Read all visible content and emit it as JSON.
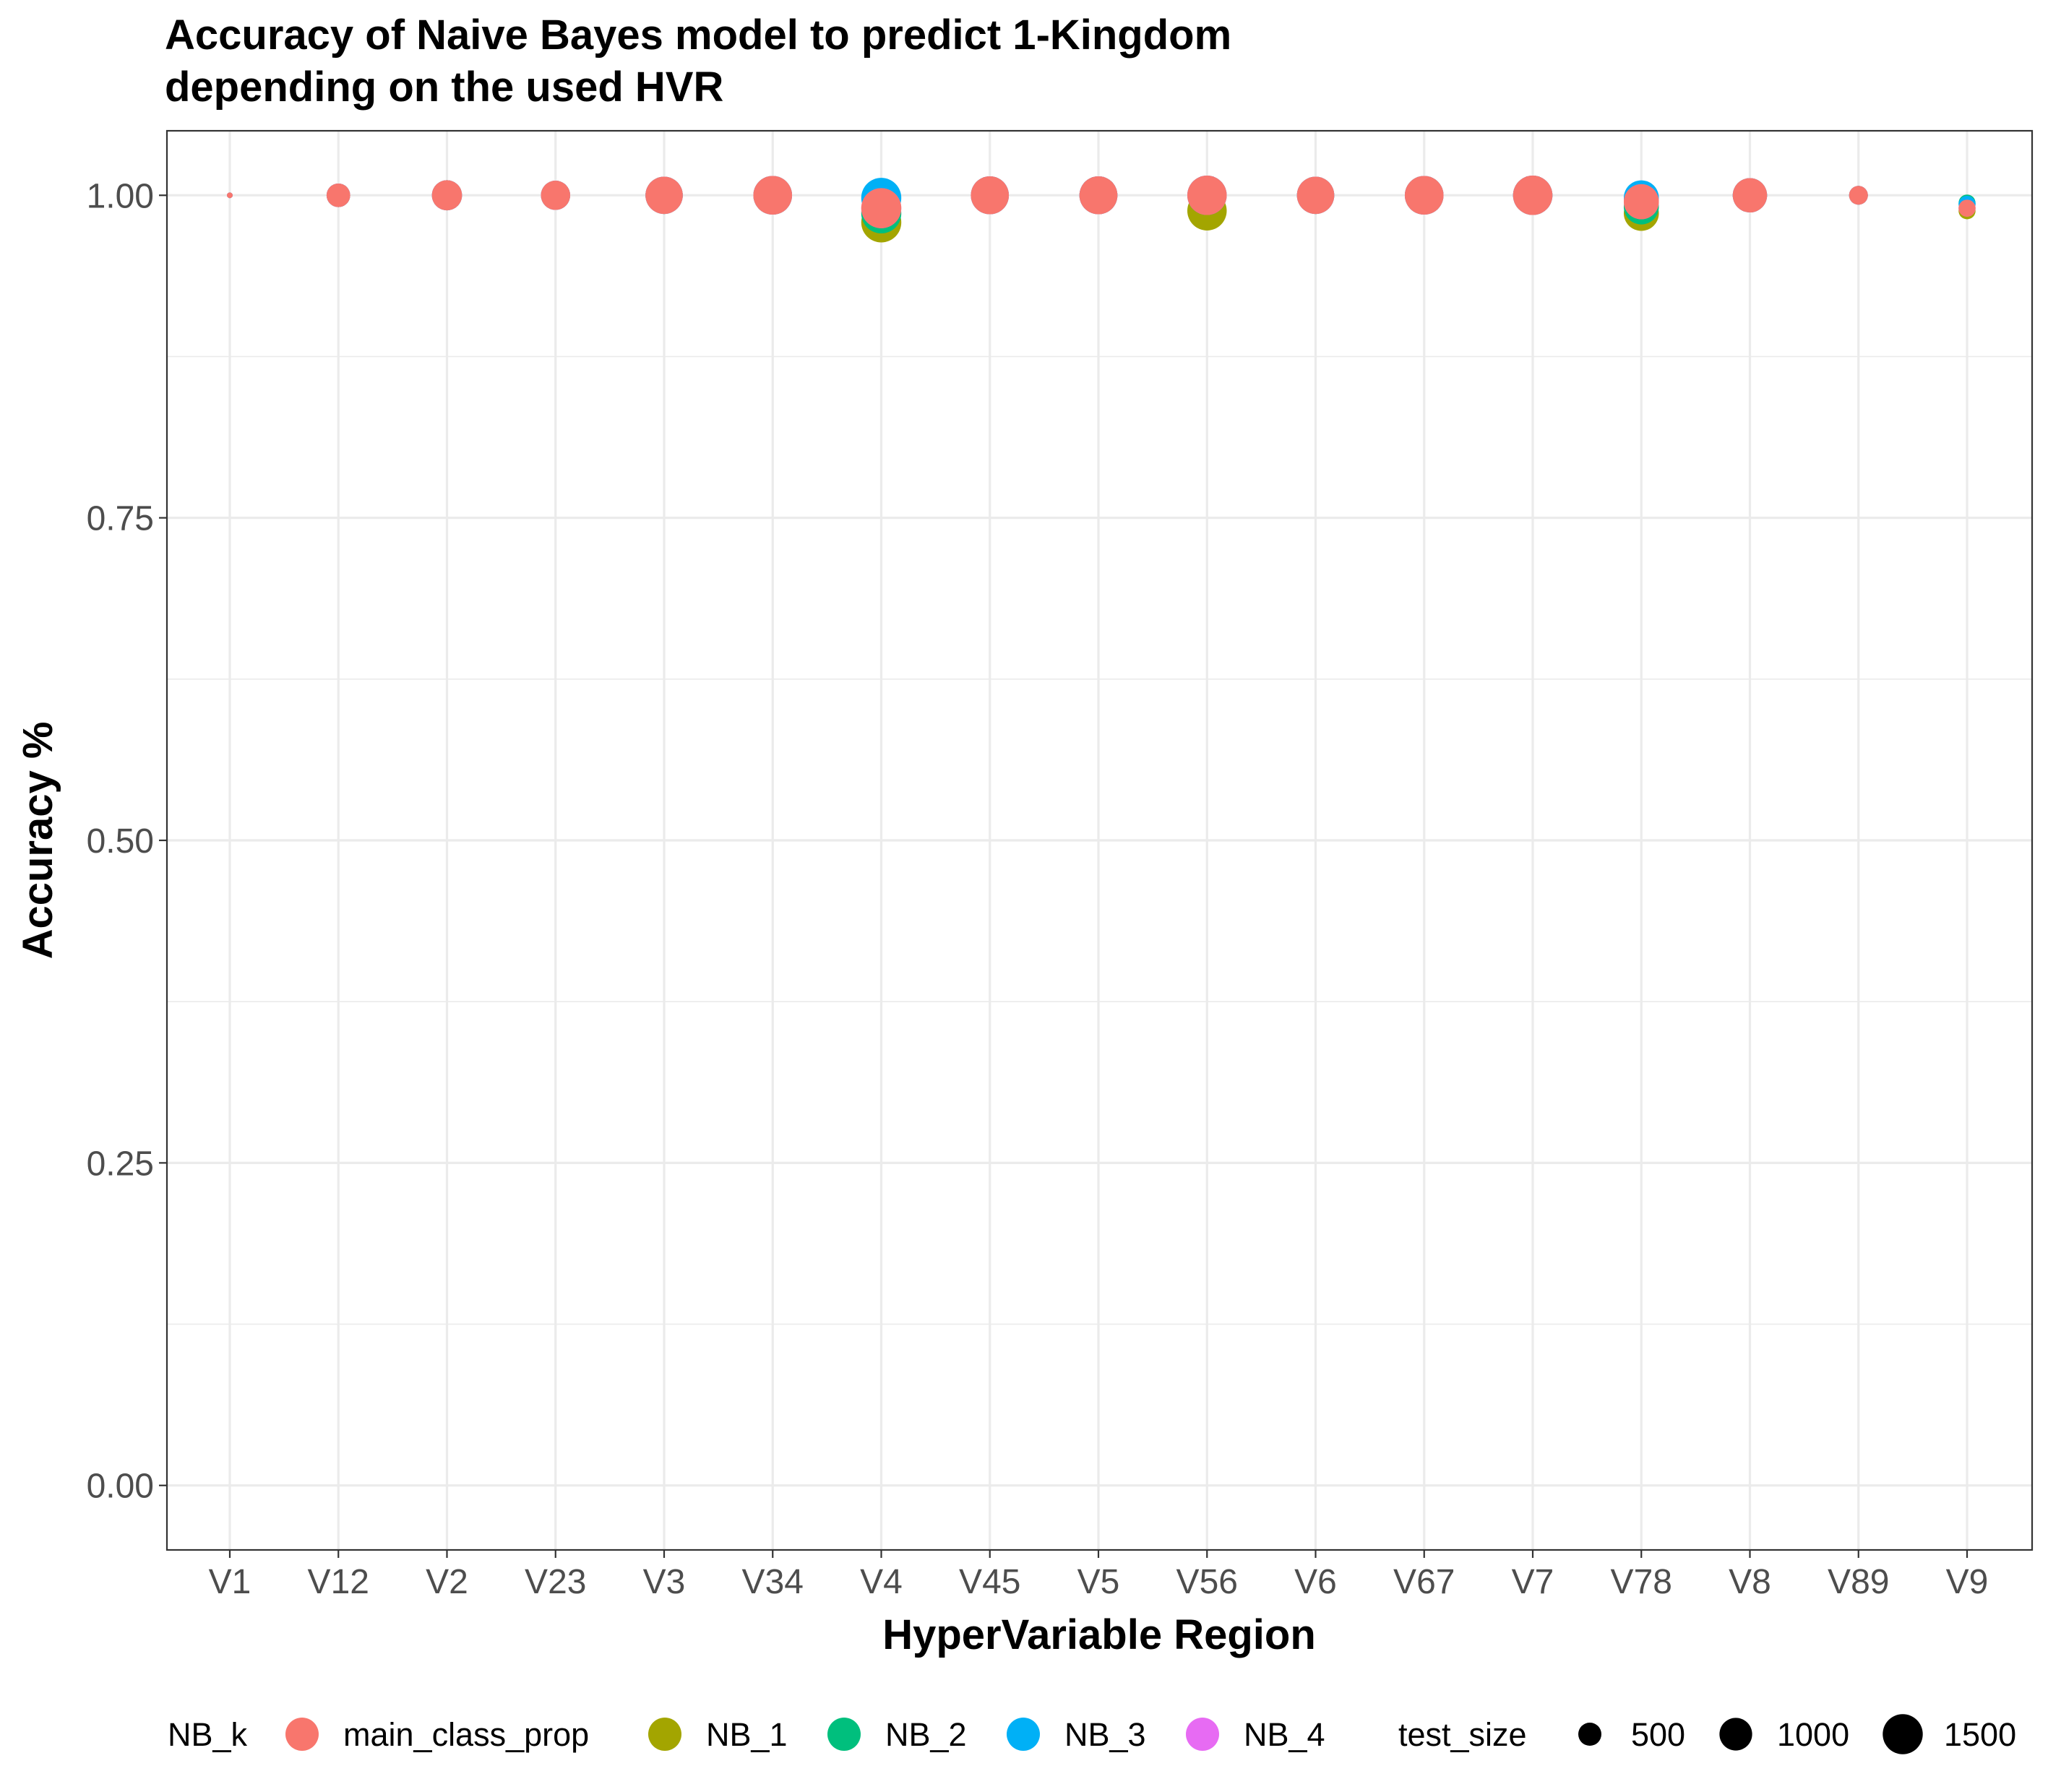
{
  "chart_data": {
    "type": "scatter",
    "title_lines": [
      "Accuracy of Naive Bayes model to predict 1-Kingdom",
      "depending on the used HVR"
    ],
    "xlabel": "HyperVariable Region",
    "ylabel": "Accuracy %",
    "categories": [
      "V1",
      "V12",
      "V2",
      "V23",
      "V3",
      "V34",
      "V4",
      "V45",
      "V5",
      "V56",
      "V6",
      "V67",
      "V7",
      "V78",
      "V8",
      "V89",
      "V9"
    ],
    "ylim": [
      -0.05,
      1.05
    ],
    "yticks": [
      0.0,
      0.25,
      0.5,
      0.75,
      1.0
    ],
    "ytick_labels": [
      "0.00",
      "0.25",
      "0.50",
      "0.75",
      "1.00"
    ],
    "grid": true,
    "legend_placement": "bottom",
    "color_legend": {
      "title": "NB_k",
      "entries": [
        {
          "key": "main_class_prop",
          "label": "main_class_prop",
          "color": "#F8766D"
        },
        {
          "key": "NB_1",
          "label": "NB_1",
          "color": "#A3A500"
        },
        {
          "key": "NB_2",
          "label": "NB_2",
          "color": "#00BF7D"
        },
        {
          "key": "NB_3",
          "label": "NB_3",
          "color": "#00B0F6"
        },
        {
          "key": "NB_4",
          "label": "NB_4",
          "color": "#E76BF3"
        }
      ]
    },
    "size_legend": {
      "title": "test_size",
      "entries": [
        {
          "label": "500",
          "value": 500
        },
        {
          "label": "1000",
          "value": 1000
        },
        {
          "label": "1500",
          "value": 1500
        }
      ]
    },
    "size_range": [
      0,
      1700
    ],
    "series": [
      {
        "name": "NB_1",
        "color": "#A3A500",
        "points": [
          {
            "x": "V1",
            "y": 1.0,
            "size": 30
          },
          {
            "x": "V12",
            "y": 1.0,
            "size": 520
          },
          {
            "x": "V2",
            "y": 1.0,
            "size": 850
          },
          {
            "x": "V23",
            "y": 1.0,
            "size": 800
          },
          {
            "x": "V3",
            "y": 1.0,
            "size": 1300
          },
          {
            "x": "V34",
            "y": 1.0,
            "size": 1400
          },
          {
            "x": "V4",
            "y": 0.979,
            "size": 1500
          },
          {
            "x": "V45",
            "y": 1.0,
            "size": 1350
          },
          {
            "x": "V5",
            "y": 1.0,
            "size": 1350
          },
          {
            "x": "V56",
            "y": 0.988,
            "size": 1450
          },
          {
            "x": "V6",
            "y": 1.0,
            "size": 1300
          },
          {
            "x": "V67",
            "y": 1.0,
            "size": 1400
          },
          {
            "x": "V7",
            "y": 1.0,
            "size": 1450
          },
          {
            "x": "V78",
            "y": 0.986,
            "size": 1150
          },
          {
            "x": "V8",
            "y": 1.0,
            "size": 1100
          },
          {
            "x": "V89",
            "y": 1.0,
            "size": 330
          },
          {
            "x": "V9",
            "y": 0.988,
            "size": 270
          }
        ]
      },
      {
        "name": "NB_2",
        "color": "#00BF7D",
        "points": [
          {
            "x": "V1",
            "y": 1.0,
            "size": 30
          },
          {
            "x": "V12",
            "y": 1.0,
            "size": 520
          },
          {
            "x": "V2",
            "y": 1.0,
            "size": 850
          },
          {
            "x": "V23",
            "y": 1.0,
            "size": 800
          },
          {
            "x": "V3",
            "y": 1.0,
            "size": 1300
          },
          {
            "x": "V34",
            "y": 1.0,
            "size": 1400
          },
          {
            "x": "V4",
            "y": 0.986,
            "size": 1500
          },
          {
            "x": "V45",
            "y": 1.0,
            "size": 1350
          },
          {
            "x": "V5",
            "y": 1.0,
            "size": 1350
          },
          {
            "x": "V56",
            "y": 1.0,
            "size": 1450
          },
          {
            "x": "V6",
            "y": 1.0,
            "size": 1300
          },
          {
            "x": "V67",
            "y": 1.0,
            "size": 1400
          },
          {
            "x": "V7",
            "y": 1.0,
            "size": 1450
          },
          {
            "x": "V78",
            "y": 0.991,
            "size": 1150
          },
          {
            "x": "V8",
            "y": 1.0,
            "size": 1100
          },
          {
            "x": "V89",
            "y": 1.0,
            "size": 330
          },
          {
            "x": "V9",
            "y": 0.994,
            "size": 270
          }
        ]
      },
      {
        "name": "NB_3",
        "color": "#00B0F6",
        "points": [
          {
            "x": "V1",
            "y": 1.0,
            "size": 30
          },
          {
            "x": "V12",
            "y": 1.0,
            "size": 520
          },
          {
            "x": "V2",
            "y": 1.0,
            "size": 850
          },
          {
            "x": "V23",
            "y": 1.0,
            "size": 800
          },
          {
            "x": "V3",
            "y": 1.0,
            "size": 1300
          },
          {
            "x": "V34",
            "y": 1.0,
            "size": 1400
          },
          {
            "x": "V4",
            "y": 0.998,
            "size": 1500
          },
          {
            "x": "V45",
            "y": 1.0,
            "size": 1350
          },
          {
            "x": "V5",
            "y": 1.0,
            "size": 1350
          },
          {
            "x": "V56",
            "y": 1.0,
            "size": 1450
          },
          {
            "x": "V6",
            "y": 1.0,
            "size": 1300
          },
          {
            "x": "V67",
            "y": 1.0,
            "size": 1400
          },
          {
            "x": "V7",
            "y": 1.0,
            "size": 1450
          },
          {
            "x": "V78",
            "y": 0.998,
            "size": 1150
          },
          {
            "x": "V8",
            "y": 1.0,
            "size": 1100
          },
          {
            "x": "V89",
            "y": 1.0,
            "size": 330
          },
          {
            "x": "V9",
            "y": 0.993,
            "size": 270
          }
        ]
      },
      {
        "name": "NB_4",
        "color": "#E76BF3",
        "points": [
          {
            "x": "V1",
            "y": 1.0,
            "size": 30
          },
          {
            "x": "V12",
            "y": 1.0,
            "size": 520
          },
          {
            "x": "V2",
            "y": 1.0,
            "size": 850
          },
          {
            "x": "V23",
            "y": 1.0,
            "size": 800
          },
          {
            "x": "V3",
            "y": 1.0,
            "size": 1300
          },
          {
            "x": "V34",
            "y": 1.0,
            "size": 1400
          },
          {
            "x": "V4",
            "y": 0.99,
            "size": 1500
          },
          {
            "x": "V45",
            "y": 1.0,
            "size": 1350
          },
          {
            "x": "V5",
            "y": 1.0,
            "size": 1350
          },
          {
            "x": "V56",
            "y": 1.0,
            "size": 1450
          },
          {
            "x": "V6",
            "y": 1.0,
            "size": 1300
          },
          {
            "x": "V67",
            "y": 1.0,
            "size": 1400
          },
          {
            "x": "V7",
            "y": 1.0,
            "size": 1450
          },
          {
            "x": "V78",
            "y": 0.995,
            "size": 1150
          },
          {
            "x": "V8",
            "y": 1.0,
            "size": 1100
          },
          {
            "x": "V89",
            "y": 1.0,
            "size": 330
          },
          {
            "x": "V9",
            "y": 0.99,
            "size": 270
          }
        ]
      },
      {
        "name": "main_class_prop",
        "color": "#F8766D",
        "points": [
          {
            "x": "V1",
            "y": 1.0,
            "size": 30
          },
          {
            "x": "V12",
            "y": 1.0,
            "size": 520
          },
          {
            "x": "V2",
            "y": 1.0,
            "size": 850
          },
          {
            "x": "V23",
            "y": 1.0,
            "size": 800
          },
          {
            "x": "V3",
            "y": 1.0,
            "size": 1300
          },
          {
            "x": "V34",
            "y": 1.0,
            "size": 1400
          },
          {
            "x": "V4",
            "y": 0.99,
            "size": 1500
          },
          {
            "x": "V45",
            "y": 1.0,
            "size": 1350
          },
          {
            "x": "V5",
            "y": 1.0,
            "size": 1350
          },
          {
            "x": "V56",
            "y": 1.0,
            "size": 1450
          },
          {
            "x": "V6",
            "y": 1.0,
            "size": 1300
          },
          {
            "x": "V67",
            "y": 1.0,
            "size": 1400
          },
          {
            "x": "V7",
            "y": 1.0,
            "size": 1450
          },
          {
            "x": "V78",
            "y": 0.995,
            "size": 1150
          },
          {
            "x": "V8",
            "y": 1.0,
            "size": 1100
          },
          {
            "x": "V89",
            "y": 1.0,
            "size": 330
          },
          {
            "x": "V9",
            "y": 0.99,
            "size": 270
          }
        ]
      }
    ]
  }
}
